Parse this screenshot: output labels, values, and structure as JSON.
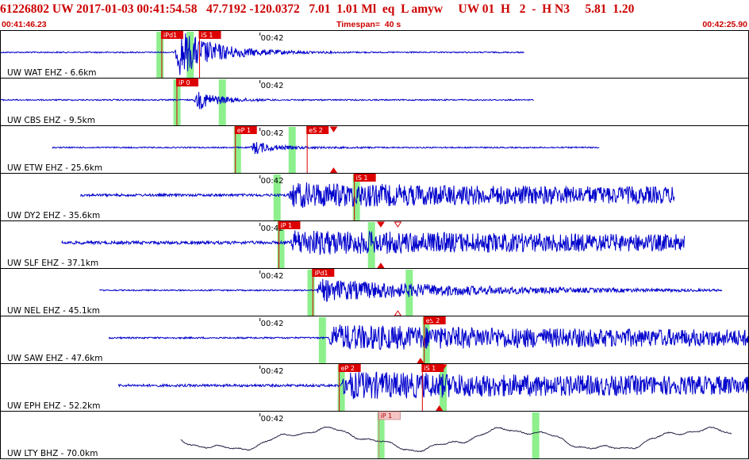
{
  "header": {
    "title_line": "61226802 UW 2017-01-03 00:41:54.58   47.7192 -120.0372   7.01  1.01 Ml  eq  L amyw     UW 01  H   2  -  H N3     5.81  1.20",
    "start_time": "00:41:46.23",
    "timespan": "Timespan=  40 s",
    "end_time": "00:42:25.90"
  },
  "time_window": {
    "start_s": 46.23,
    "end_s": 85.9,
    "tick_label": "00:42",
    "tick_s": 60
  },
  "colors": {
    "trace": "#0000cc",
    "bhz_trace": "#222244",
    "pick": "#dd0000",
    "pick_faint": "#f4c4c4",
    "window": "#8df08d",
    "header": "#cc0000",
    "border": "#000000"
  },
  "channels": [
    {
      "label": "UW WAT EHZ - 6.6km",
      "data_start_s": 46.23,
      "data_end_s": 74.0,
      "onset_s": 55.5,
      "noise": 0.04,
      "peak": 1.6,
      "decay": 0.22,
      "coda": 0.1,
      "style": "hf",
      "green_windows": [
        54.6,
        56.2
      ],
      "picks": [
        {
          "label": "iPd1",
          "t": 54.8,
          "style": "red"
        },
        {
          "label": "iS 1",
          "t": 56.8,
          "style": "red"
        }
      ],
      "markers": []
    },
    {
      "label": "UW CBS EHZ - 9.5km",
      "data_start_s": 46.23,
      "data_end_s": 74.5,
      "onset_s": 56.5,
      "noise": 0.04,
      "peak": 0.7,
      "decay": 0.35,
      "coda": 0.05,
      "style": "hf",
      "green_windows": [
        55.5,
        57.9
      ],
      "picks": [
        {
          "label": "iP 0",
          "t": 55.6,
          "style": "red"
        }
      ],
      "markers": []
    },
    {
      "label": "UW ETW EHZ - 25.6km",
      "data_start_s": 49.0,
      "data_end_s": 78.0,
      "onset_s": 59.5,
      "noise": 0.04,
      "peak": 0.5,
      "decay": 0.5,
      "coda": 0.09,
      "style": "hf",
      "green_windows": [
        58.7,
        61.6
      ],
      "picks": [
        {
          "label": "eP 1",
          "t": 58.7,
          "style": "red"
        },
        {
          "label": "eS 2",
          "t": 62.5,
          "style": "red"
        }
      ],
      "markers": [
        {
          "t": 63.9,
          "kind": "down"
        },
        {
          "t": 63.9,
          "kind": "up"
        }
      ]
    },
    {
      "label": "UW DY2 EHZ - 35.6km",
      "data_start_s": 50.5,
      "data_end_s": 82.0,
      "onset_s": 61.5,
      "noise": 0.08,
      "peak": 0.5,
      "decay": 0.0,
      "coda": 0.35,
      "style": "hf",
      "green_windows": [
        60.8,
        65.0
      ],
      "picks": [
        {
          "label": "iS 1",
          "t": 65.0,
          "style": "red"
        }
      ],
      "markers": []
    },
    {
      "label": "UW SLF EHZ - 37.1km",
      "data_start_s": 49.5,
      "data_end_s": 82.5,
      "onset_s": 61.6,
      "noise": 0.1,
      "peak": 0.5,
      "decay": 0.0,
      "coda": 0.35,
      "style": "hf",
      "green_windows": [
        61.0,
        65.8
      ],
      "picks": [
        {
          "label": "iP 1",
          "t": 61.0,
          "style": "red"
        }
      ],
      "markers": [
        {
          "t": 66.4,
          "kind": "down"
        },
        {
          "t": 66.4,
          "kind": "up"
        },
        {
          "t": 67.3,
          "kind": "open-down"
        }
      ]
    },
    {
      "label": "UW NEL EHZ - 45.1km",
      "data_start_s": 51.5,
      "data_end_s": 84.5,
      "onset_s": 63.0,
      "noise": 0.04,
      "peak": 0.45,
      "decay": 0.05,
      "coda": 0.3,
      "style": "hf",
      "green_windows": [
        62.6,
        67.8
      ],
      "picks": [
        {
          "label": "iPd1",
          "t": 62.8,
          "style": "red"
        }
      ],
      "markers": [
        {
          "t": 67.3,
          "kind": "open-up"
        }
      ]
    },
    {
      "label": "UW SAW EHZ - 47.6km",
      "data_start_s": 52.0,
      "data_end_s": 86.0,
      "onset_s": 63.6,
      "noise": 0.05,
      "peak": 0.5,
      "decay": 0.0,
      "coda": 0.38,
      "style": "hf",
      "green_windows": [
        63.2,
        68.7
      ],
      "picks": [
        {
          "label": "eS 2",
          "t": 68.7,
          "style": "red"
        }
      ],
      "markers": [
        {
          "t": 69.2,
          "kind": "down"
        },
        {
          "t": 68.5,
          "kind": "up"
        }
      ]
    },
    {
      "label": "UW EPH EHZ - 52.2km",
      "data_start_s": 52.5,
      "data_end_s": 87.5,
      "onset_s": 64.3,
      "noise": 0.08,
      "peak": 0.55,
      "decay": 0.0,
      "coda": 0.38,
      "style": "hf",
      "green_windows": [
        64.2,
        69.6
      ],
      "picks": [
        {
          "label": "eP 2",
          "t": 64.2,
          "style": "red"
        },
        {
          "label": "iS 1",
          "t": 68.6,
          "style": "red"
        }
      ],
      "markers": [
        {
          "t": 69.5,
          "kind": "up"
        },
        {
          "t": 69.7,
          "kind": "down"
        }
      ]
    },
    {
      "label": "UW LTY BHZ - 70.0km",
      "data_start_s": 55.8,
      "data_end_s": 85.0,
      "onset_s": 66.0,
      "noise": 0.0,
      "peak": 0.0,
      "decay": 0.0,
      "coda": 0.0,
      "style": "lp",
      "green_windows": [
        66.3,
        74.5
      ],
      "picks": [
        {
          "label": "iP 1",
          "t": 66.3,
          "style": "pink"
        }
      ],
      "markers": []
    }
  ]
}
